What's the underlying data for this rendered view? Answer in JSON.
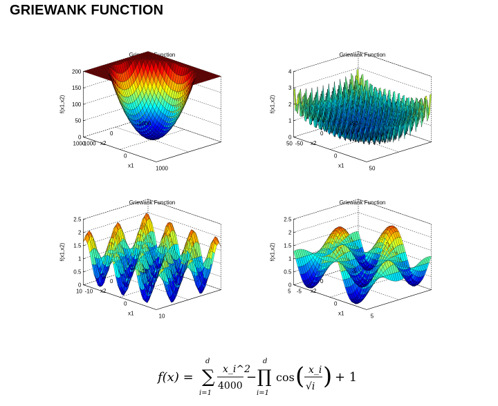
{
  "page": {
    "title": "GRIEWANK FUNCTION"
  },
  "chart_data": [
    {
      "type": "surface3d",
      "title": "Griewank Function",
      "xlabel": "x1",
      "ylabel": "x2",
      "zlabel": "f(x1,x2)",
      "x_range": [
        -1000,
        1000
      ],
      "y_range": [
        -1000,
        1000
      ],
      "zlim": [
        0,
        200
      ],
      "x_ticks": [
        "-1000",
        "0",
        "1000"
      ],
      "y_ticks": [
        "1000",
        "0",
        "-1000"
      ],
      "z_ticks": [
        "0",
        "50",
        "100",
        "150",
        "200"
      ],
      "colormap": "jet",
      "grid": true
    },
    {
      "type": "surface3d",
      "title": "Griewank Function",
      "xlabel": "x1",
      "ylabel": "x2",
      "zlabel": "f(x1,x2)",
      "x_range": [
        -50,
        50
      ],
      "y_range": [
        -50,
        50
      ],
      "zlim": [
        0,
        4
      ],
      "x_ticks": [
        "-50",
        "0",
        "50"
      ],
      "y_ticks": [
        "50",
        "0",
        "-50"
      ],
      "z_ticks": [
        "0",
        "1",
        "2",
        "3",
        "4"
      ],
      "colormap": "jet",
      "grid": true
    },
    {
      "type": "surface3d",
      "title": "Griewank Function",
      "xlabel": "x1",
      "ylabel": "x2",
      "zlabel": "f(x1,x2)",
      "x_range": [
        -10,
        10
      ],
      "y_range": [
        -10,
        10
      ],
      "zlim": [
        0,
        2.5
      ],
      "x_ticks": [
        "-10",
        "0",
        "10"
      ],
      "y_ticks": [
        "10",
        "0",
        "-10"
      ],
      "z_ticks": [
        "0",
        "0.5",
        "1",
        "1.5",
        "2",
        "2.5"
      ],
      "colormap": "jet",
      "grid": true
    },
    {
      "type": "surface3d",
      "title": "Griewank Function",
      "xlabel": "x1",
      "ylabel": "x2",
      "zlabel": "f(x1,x2)",
      "x_range": [
        -5,
        5
      ],
      "y_range": [
        -5,
        5
      ],
      "zlim": [
        0,
        2.5
      ],
      "x_ticks": [
        "-5",
        "0",
        "5"
      ],
      "y_ticks": [
        "5",
        "0",
        "-5"
      ],
      "z_ticks": [
        "0",
        "0.5",
        "1",
        "1.5",
        "2",
        "2.5"
      ],
      "colormap": "jet",
      "grid": true
    }
  ],
  "formula": {
    "lhs": "f(x) =",
    "sum_symbol": "∑",
    "sum_upper": "d",
    "sum_lower": "i=1",
    "frac_num": "x_i^2",
    "frac_den": "4000",
    "minus": "−",
    "prod_symbol": "∏",
    "prod_upper": "d",
    "prod_lower": "i=1",
    "cos": "cos",
    "cos_num": "x_i",
    "cos_den": "√i",
    "plus_one": "+ 1"
  }
}
